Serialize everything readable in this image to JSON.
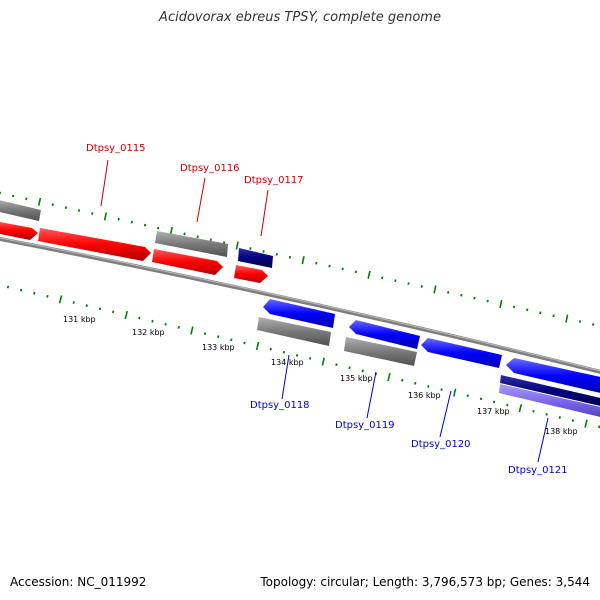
{
  "title": "Acidovorax ebreus TPSY, complete genome",
  "footer": {
    "accession": "Accession: NC_011992",
    "stats": "Topology: circular; Length: 3,796,573 bp; Genes: 3,544"
  },
  "colors": {
    "forward_cds": "#ff0000",
    "reverse_cds": "#0000ff",
    "gene": "#808080",
    "navy_feature": "#000080",
    "purple_feature": "#7b68ee",
    "ticks": "#008000",
    "backbone": "#808080",
    "forward_label": "#cc0000",
    "reverse_label": "#0000cc"
  },
  "tick_labels": [
    "131 kbp",
    "132 kbp",
    "133 kbp",
    "134 kbp",
    "135 kbp",
    "136 kbp",
    "137 kbp",
    "138 kbp"
  ],
  "gene_labels": {
    "forward": [
      "Dtpsy_0115",
      "Dtpsy_0116",
      "Dtpsy_0117"
    ],
    "reverse": [
      "Dtpsy_0118",
      "Dtpsy_0119",
      "Dtpsy_0120",
      "Dtpsy_0121"
    ]
  }
}
